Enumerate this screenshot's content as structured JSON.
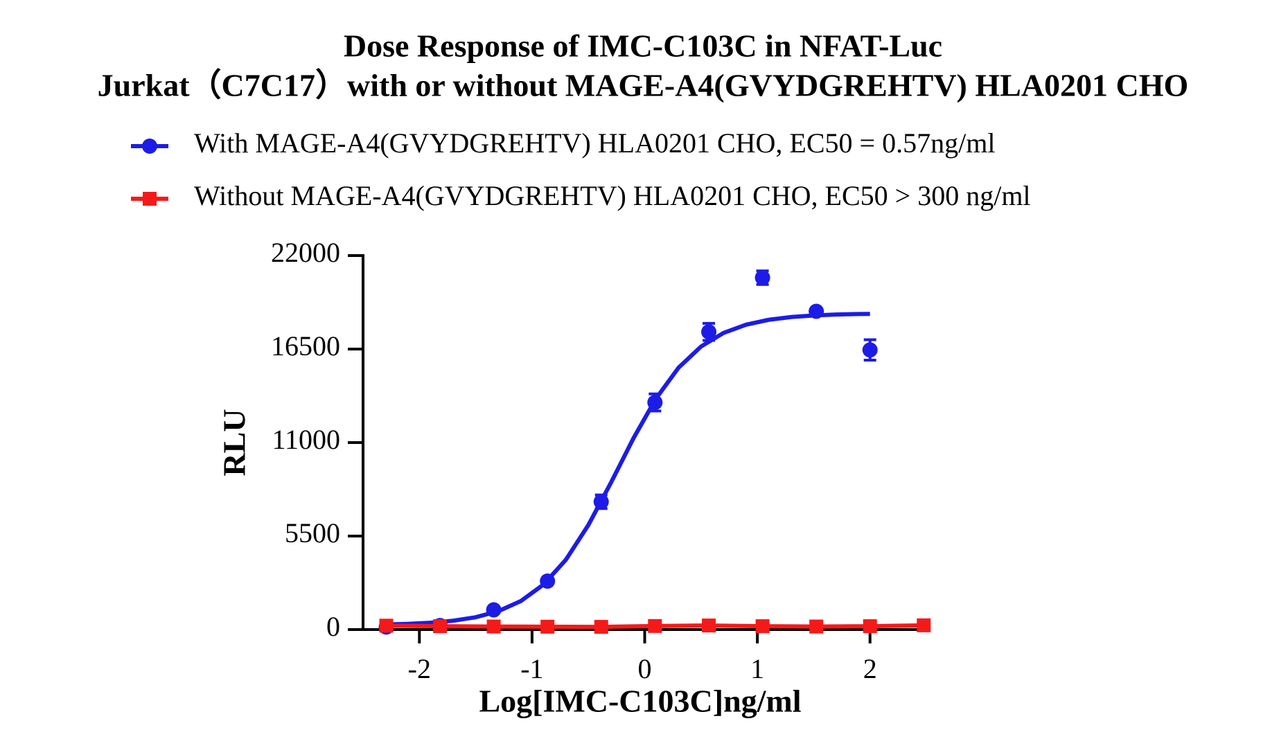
{
  "chart_data": {
    "type": "dose-response",
    "title": [
      "Dose Response of  IMC-C103C in NFAT-Luc",
      "Jurkat（C7C17）with or without MAGE-A4(GVYDGREHTV) HLA0201 CHO"
    ],
    "xlabel": "Log[IMC-C103C]ng/ml",
    "ylabel": "RLU",
    "xlim": [
      -2.5,
      2.5
    ],
    "xticks": [
      -2,
      -1,
      0,
      1,
      2
    ],
    "ylim": [
      0,
      22000
    ],
    "yticks": [
      0,
      5500,
      11000,
      16500,
      22000
    ],
    "series": [
      {
        "name": "With MAGE-A4(GVYDGREHTV) HLA0201 CHO, EC50 = 0.57ng/ml",
        "color": "#1c1ce6",
        "marker": "circle",
        "x": [
          -2.294,
          -1.817,
          -1.34,
          -0.863,
          -0.386,
          0.091,
          0.569,
          1.046,
          1.523,
          2.0
        ],
        "values": [
          150,
          240,
          1160,
          2850,
          7520,
          13360,
          17510,
          20700,
          18720,
          16450
        ],
        "errors": [
          100,
          100,
          150,
          150,
          400,
          500,
          500,
          400,
          150,
          600
        ],
        "fit": {
          "x": [
            -2.3,
            -2.1,
            -1.9,
            -1.7,
            -1.5,
            -1.3,
            -1.1,
            -0.9,
            -0.7,
            -0.5,
            -0.3,
            -0.1,
            0.1,
            0.3,
            0.5,
            0.7,
            0.9,
            1.1,
            1.3,
            1.5,
            1.7,
            1.9,
            2.0
          ],
          "values": [
            299,
            337,
            403,
            520,
            725,
            1080,
            1674,
            2639,
            4105,
            6150,
            8633,
            11251,
            13586,
            15402,
            16649,
            17451,
            17935,
            18221,
            18384,
            18478,
            18531,
            18561,
            18570
          ]
        }
      },
      {
        "name": "Without MAGE-A4(GVYDGREHTV) HLA0201 CHO, EC50 > 300 ng/ml",
        "color": "#f51a1a",
        "marker": "square",
        "x": [
          -2.294,
          -1.817,
          -1.34,
          -0.863,
          -0.386,
          0.091,
          0.569,
          1.046,
          1.523,
          2.0,
          2.477
        ],
        "values": [
          230,
          200,
          180,
          170,
          160,
          210,
          240,
          200,
          180,
          200,
          250
        ]
      }
    ]
  }
}
